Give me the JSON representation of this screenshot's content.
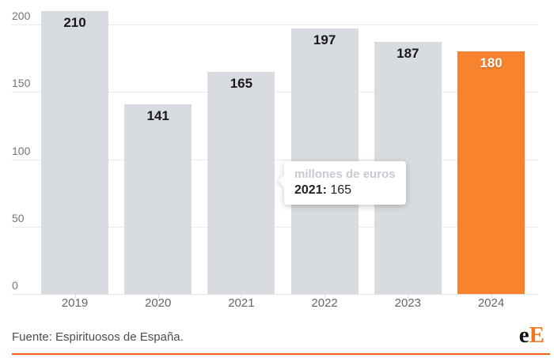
{
  "chart_data": {
    "type": "bar",
    "categories": [
      "2019",
      "2020",
      "2021",
      "2022",
      "2023",
      "2024"
    ],
    "values": [
      210,
      141,
      165,
      197,
      187,
      180
    ],
    "title": "",
    "xlabel": "",
    "ylabel": "",
    "unit": "millones de euros",
    "yticks": [
      0,
      50,
      100,
      150,
      200
    ],
    "ylim": [
      0,
      200
    ],
    "grid": true,
    "highlighted_category": "2024",
    "colors": {
      "bar": "#d8dbdf",
      "highlight": "#f8832e",
      "value_label": "#191919",
      "value_label_on_highlight": "#ffffff",
      "axis_label": "#757575",
      "x_label": "#666666",
      "gridline": "#ebebeb"
    }
  },
  "tooltip": {
    "title": "millones de euros",
    "label": "2021:",
    "value": "165"
  },
  "footer": {
    "source": "Fuente: Espirituosos de España.",
    "logo_e": "e",
    "logo_E": "E",
    "rule_color": "#f2600a"
  }
}
